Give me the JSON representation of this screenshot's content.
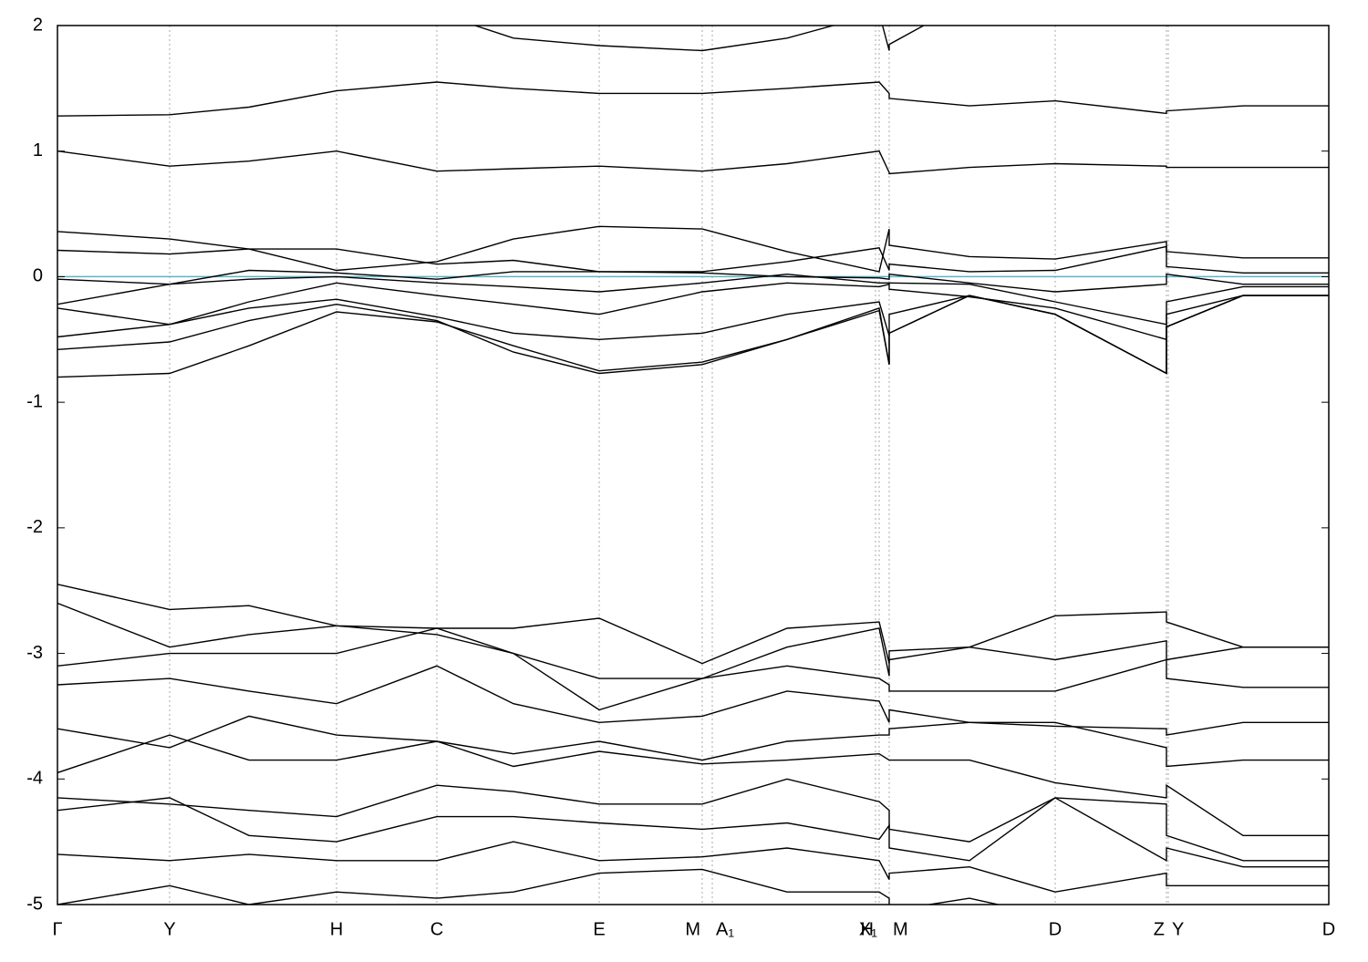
{
  "chart_data": {
    "type": "line",
    "x": [
      0,
      1.23,
      2.1,
      3.06,
      4.16,
      5.0,
      5.94,
      7.07,
      8.0,
      9.01,
      9.12,
      9.12,
      10.0,
      10.94,
      12.16,
      12.16,
      13.0,
      13.94
    ],
    "xlim": [
      0,
      13.94
    ],
    "xticks": [
      {
        "value": 0,
        "label": "Γ"
      },
      {
        "value": 1.23,
        "label": "Y"
      },
      {
        "value": 3.06,
        "label": "H"
      },
      {
        "value": 4.16,
        "label": "C"
      },
      {
        "value": 5.94,
        "label": "E"
      },
      {
        "value": 7.07,
        "label": "M"
      },
      {
        "value": 7.18,
        "label": "A₁"
      },
      {
        "value": 8.97,
        "label": "H"
      },
      {
        "value": 9.01,
        "label": "X₁"
      },
      {
        "value": 9.12,
        "label": "M"
      },
      {
        "value": 10.94,
        "label": "D"
      },
      {
        "value": 12.16,
        "label": "Z"
      },
      {
        "value": 12.18,
        "label": "Y"
      },
      {
        "value": 13.94,
        "label": "D"
      }
    ],
    "ylim": [
      -5,
      2
    ],
    "yticks": [
      2,
      1,
      0,
      -1,
      -2,
      -3,
      -4,
      -5
    ],
    "grid": true,
    "line_color": "#000000",
    "fermi_level": 0,
    "fermi_color": "#5ab4c8",
    "series": [
      {
        "values": [
          1.28,
          1.29,
          1.35,
          1.48,
          1.55,
          1.5,
          1.46,
          1.46,
          1.5,
          1.55,
          1.46,
          1.42,
          1.36,
          1.4,
          1.3,
          1.32,
          1.36,
          1.36
        ]
      },
      {
        "values": [
          1.0,
          0.88,
          0.92,
          1.0,
          0.84,
          0.86,
          0.88,
          0.84,
          0.9,
          1.0,
          0.83,
          0.82,
          0.87,
          0.9,
          0.88,
          0.87,
          0.87,
          0.87
        ]
      },
      {
        "values": [
          2.3,
          2.2,
          2.3,
          2.3,
          2.1,
          1.9,
          1.84,
          1.8,
          1.9,
          2.1,
          1.8,
          1.85,
          2.2,
          2.3,
          2.3,
          2.3,
          2.3,
          2.3
        ]
      },
      {
        "values": [
          0.36,
          0.3,
          0.22,
          0.05,
          0.12,
          0.3,
          0.4,
          0.38,
          0.2,
          0.04,
          0.38,
          0.25,
          0.16,
          0.14,
          0.28,
          0.2,
          0.15,
          0.15
        ]
      },
      {
        "values": [
          0.21,
          0.18,
          0.22,
          0.22,
          0.1,
          0.13,
          0.04,
          0.04,
          0.12,
          0.23,
          0.05,
          0.1,
          0.04,
          0.05,
          0.24,
          0.08,
          0.03,
          0.03
        ]
      },
      {
        "values": [
          -0.02,
          -0.06,
          0.05,
          0.03,
          -0.02,
          0.04,
          0.04,
          0.03,
          0.0,
          -0.01,
          -0.02,
          0.02,
          -0.05,
          -0.12,
          -0.06,
          0.02,
          -0.06,
          -0.06
        ]
      },
      {
        "values": [
          -0.22,
          -0.06,
          -0.02,
          0.0,
          -0.05,
          -0.08,
          -0.12,
          -0.05,
          0.02,
          -0.05,
          -0.05,
          -0.05,
          -0.06,
          -0.2,
          -0.38,
          -0.2,
          -0.08,
          -0.08
        ]
      },
      {
        "values": [
          -0.25,
          -0.38,
          -0.2,
          -0.05,
          -0.15,
          -0.22,
          -0.3,
          -0.12,
          -0.05,
          -0.08,
          -0.06,
          -0.1,
          -0.16,
          -0.25,
          -0.5,
          -0.3,
          -0.15,
          -0.15
        ]
      },
      {
        "values": [
          -0.48,
          -0.38,
          -0.25,
          -0.18,
          -0.32,
          -0.45,
          -0.5,
          -0.45,
          -0.3,
          -0.2,
          -0.47,
          -0.3,
          -0.15,
          -0.3,
          -0.77,
          -0.4,
          -0.15,
          -0.15
        ]
      },
      {
        "values": [
          -0.58,
          -0.52,
          -0.35,
          -0.22,
          -0.35,
          -0.6,
          -0.77,
          -0.7,
          -0.5,
          -0.25,
          -0.7,
          -0.45,
          -0.15,
          -0.3,
          -0.77,
          -0.4,
          -0.15,
          -0.15
        ]
      },
      {
        "values": [
          -0.8,
          -0.77,
          -0.55,
          -0.28,
          -0.36,
          -0.55,
          -0.75,
          -0.68,
          -0.5,
          -0.27,
          -0.7,
          -0.45,
          -0.15,
          -0.3,
          -0.77,
          -0.4,
          -0.15,
          -0.15
        ]
      },
      {
        "values": [
          -2.45,
          -2.65,
          -2.62,
          -2.78,
          -2.8,
          -2.8,
          -2.72,
          -3.08,
          -2.8,
          -2.75,
          -3.08,
          -2.98,
          -2.95,
          -2.7,
          -2.67,
          -2.75,
          -2.95,
          -2.95
        ]
      },
      {
        "values": [
          -2.6,
          -2.95,
          -2.85,
          -2.78,
          -2.85,
          -3.0,
          -3.2,
          -3.2,
          -2.95,
          -2.8,
          -3.18,
          -3.05,
          -2.95,
          -3.05,
          -2.9,
          -3.05,
          -2.95,
          -2.95
        ]
      },
      {
        "values": [
          -3.1,
          -3.0,
          -3.0,
          -3.0,
          -2.8,
          -3.0,
          -3.45,
          -3.2,
          -3.1,
          -3.2,
          -3.25,
          -3.3,
          -3.3,
          -3.3,
          -3.05,
          -3.2,
          -3.27,
          -3.27
        ]
      },
      {
        "values": [
          -3.25,
          -3.2,
          -3.3,
          -3.4,
          -3.1,
          -3.4,
          -3.55,
          -3.5,
          -3.3,
          -3.38,
          -3.55,
          -3.45,
          -3.55,
          -3.58,
          -3.6,
          -3.65,
          -3.55,
          -3.55
        ]
      },
      {
        "values": [
          -3.6,
          -3.75,
          -3.5,
          -3.65,
          -3.7,
          -3.8,
          -3.7,
          -3.85,
          -3.7,
          -3.65,
          -3.65,
          -3.6,
          -3.55,
          -3.55,
          -3.75,
          -3.9,
          -3.85,
          -3.85
        ]
      },
      {
        "values": [
          -3.95,
          -3.65,
          -3.85,
          -3.85,
          -3.7,
          -3.9,
          -3.78,
          -3.88,
          -3.85,
          -3.8,
          -3.85,
          -3.85,
          -3.85,
          -4.03,
          -4.15,
          -4.05,
          -4.45,
          -4.45
        ]
      },
      {
        "values": [
          -4.15,
          -4.2,
          -4.25,
          -4.3,
          -4.05,
          -4.1,
          -4.2,
          -4.2,
          -4.0,
          -4.18,
          -4.25,
          -4.4,
          -4.5,
          -4.15,
          -4.2,
          -4.45,
          -4.65,
          -4.65
        ]
      },
      {
        "values": [
          -4.25,
          -4.15,
          -4.45,
          -4.5,
          -4.3,
          -4.3,
          -4.35,
          -4.4,
          -4.35,
          -4.48,
          -4.37,
          -4.55,
          -4.65,
          -4.15,
          -4.65,
          -4.55,
          -4.7,
          -4.7
        ]
      },
      {
        "values": [
          -4.6,
          -4.65,
          -4.6,
          -4.65,
          -4.65,
          -4.5,
          -4.65,
          -4.62,
          -4.55,
          -4.65,
          -4.8,
          -4.75,
          -4.7,
          -4.9,
          -4.75,
          -4.85,
          -4.85,
          -4.85
        ]
      },
      {
        "values": [
          -5.0,
          -4.85,
          -5.0,
          -4.9,
          -4.95,
          -4.9,
          -4.75,
          -4.72,
          -4.9,
          -4.9,
          -4.95,
          -5.05,
          -4.95,
          -5.1,
          -5.1,
          -5.1,
          -5.1,
          -5.1
        ]
      }
    ]
  }
}
